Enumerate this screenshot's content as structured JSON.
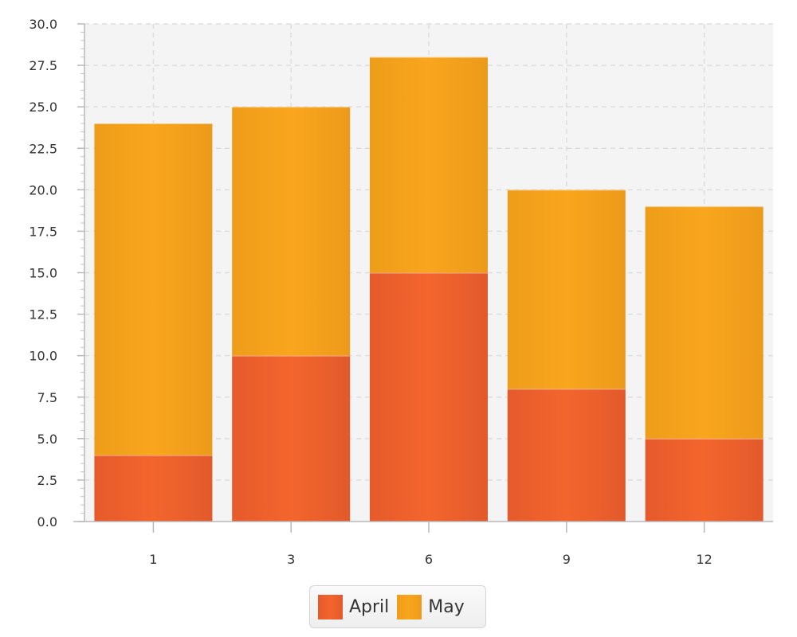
{
  "chart_data": {
    "type": "bar",
    "stacked": true,
    "title": "",
    "xlabel": "",
    "ylabel": "",
    "categories": [
      "1",
      "3",
      "6",
      "9",
      "12"
    ],
    "series": [
      {
        "name": "April",
        "values": [
          4,
          10,
          15,
          8,
          5
        ],
        "color": "#f0612c"
      },
      {
        "name": "May",
        "values": [
          20,
          15,
          13,
          12,
          14
        ],
        "color": "#f8a31b"
      }
    ],
    "ylim": [
      0,
      30
    ],
    "yticks": [
      "0.0",
      "2.5",
      "5.0",
      "7.5",
      "10.0",
      "12.5",
      "15.0",
      "17.5",
      "20.0",
      "22.5",
      "25.0",
      "27.5",
      "30.0"
    ],
    "grid": true,
    "legend_position": "bottom-center",
    "plot_background": "#f4f4f4",
    "grid_color": "#dddddd"
  }
}
